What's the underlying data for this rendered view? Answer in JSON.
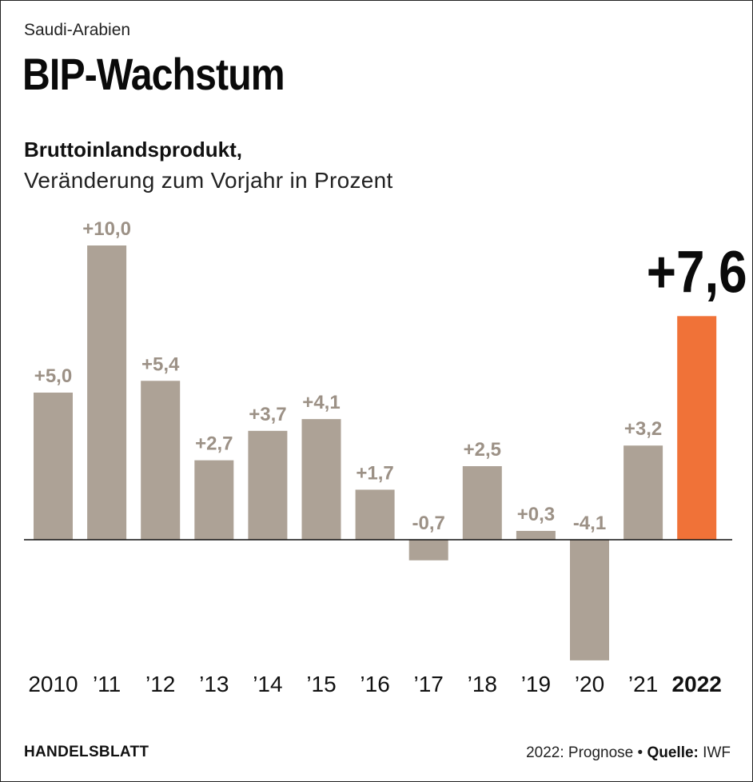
{
  "header": {
    "kicker": "Saudi-Arabien",
    "title": "BIP-Wachstum",
    "subtitle_bold": "Bruttoinlandsprodukt,",
    "subtitle": "Veränderung zum Vorjahr in Prozent"
  },
  "footer": {
    "brand": "HANDELSBLATT",
    "note": "2022: Prognose",
    "bullet": "•",
    "source_label": "Quelle:",
    "source": "IWF"
  },
  "colors": {
    "bar": "#ada296",
    "highlight": "#f07238",
    "label": "#9c9186",
    "highlight_label": "#0a0a0a",
    "axis": "#111111"
  },
  "chart_data": {
    "type": "bar",
    "categories": [
      "2010",
      "’11",
      "’12",
      "’13",
      "’14",
      "’15",
      "’16",
      "’17",
      "’18",
      "’19",
      "’20",
      "’21",
      "2022"
    ],
    "values": [
      5.0,
      10.0,
      5.4,
      2.7,
      3.7,
      4.1,
      1.7,
      -0.7,
      2.5,
      0.3,
      -4.1,
      3.2,
      7.6
    ],
    "labels": [
      "+5,0",
      "+10,0",
      "+5,4",
      "+2,7",
      "+3,7",
      "+4,1",
      "+1,7",
      "-0,7",
      "+2,5",
      "+0,3",
      "-4,1",
      "+3,2",
      "+7,6"
    ],
    "highlight_index": 12,
    "ylim": [
      -4.1,
      10.0
    ],
    "xlabel": "",
    "ylabel": "",
    "grid": false
  }
}
